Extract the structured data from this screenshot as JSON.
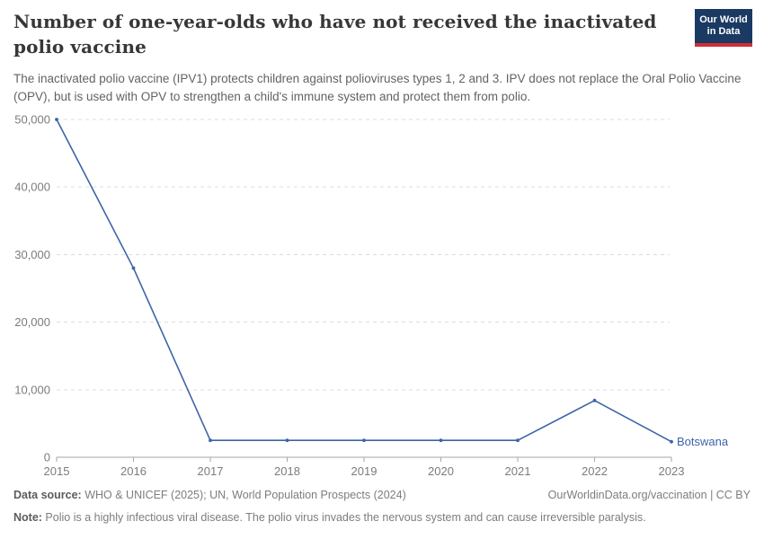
{
  "header": {
    "title": "Number of one-year-olds who have not received the inactivated polio vaccine",
    "subtitle": "The inactivated polio vaccine (IPV1) protects children against polioviruses types 1, 2 and 3. IPV does not replace the Oral Polio Vaccine (OPV), but is used with OPV to strengthen a child's immune system and protect them from polio.",
    "logo": {
      "line1": "Our World",
      "line2": "in Data",
      "bg_color": "#1a3a63",
      "accent_color": "#d02e35"
    }
  },
  "chart_data": {
    "type": "line",
    "title": "Number of one-year-olds who have not received the inactivated polio vaccine",
    "x": [
      2015,
      2016,
      2017,
      2018,
      2019,
      2020,
      2021,
      2022,
      2023
    ],
    "series": [
      {
        "name": "Botswana",
        "values": [
          50000,
          28000,
          2500,
          2500,
          2500,
          2500,
          2500,
          8400,
          2300
        ],
        "color": "#3e64a8"
      }
    ],
    "xlabel": "",
    "ylabel": "",
    "ylim": [
      0,
      50000
    ],
    "yticks": [
      0,
      10000,
      20000,
      30000,
      40000,
      50000
    ],
    "ytick_labels": [
      "0",
      "10,000",
      "20,000",
      "30,000",
      "40,000",
      "50,000"
    ],
    "xtick_labels": [
      "2015",
      "2016",
      "2017",
      "2018",
      "2019",
      "2020",
      "2021",
      "2022",
      "2023"
    ],
    "grid": "horizontal dashed",
    "legend_position": "line-end label",
    "marker": "dot"
  },
  "footer": {
    "data_source_label": "Data source:",
    "data_source": " WHO & UNICEF (2025); UN, World Population Prospects (2024)",
    "link": "OurWorldinData.org/vaccination | CC BY",
    "note_label": "Note:",
    "note": " Polio is a highly infectious viral disease. The polio virus invades the nervous system and can cause irreversible paralysis."
  }
}
